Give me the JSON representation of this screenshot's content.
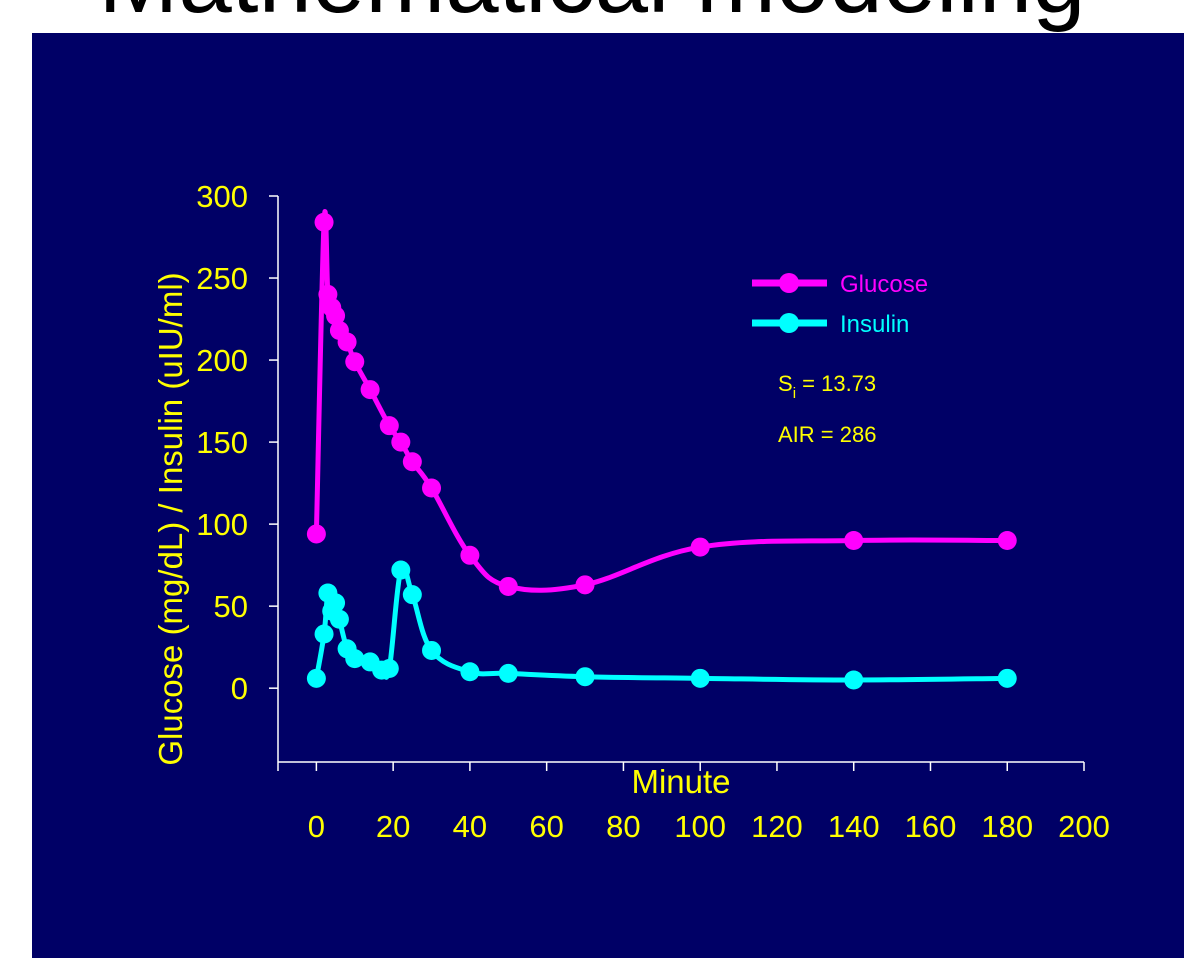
{
  "slide": {
    "title": "Mathematical modeling",
    "background_color": "#ffffff",
    "panel_color": "#000066"
  },
  "chart_data": {
    "type": "line",
    "title": "",
    "xlabel": "Minute",
    "ylabel": "Glucose (mg/dL) / Insulin (uIU/ml)",
    "xlim": [
      -10,
      200
    ],
    "ylim": [
      -45,
      300
    ],
    "xticks": [
      0,
      20,
      40,
      60,
      80,
      100,
      120,
      140,
      160,
      180,
      200
    ],
    "yticks": [
      0,
      50,
      100,
      150,
      200,
      250,
      300
    ],
    "grid": false,
    "legend_position": "top-right",
    "colors": {
      "axis": "#ffffff",
      "text": "#ffff00",
      "glucose": "#ff00ff",
      "insulin": "#00ffff"
    },
    "series": [
      {
        "name": "Glucose",
        "color": "#ff00ff",
        "x": [
          0,
          2,
          3,
          4,
          5,
          6,
          8,
          10,
          14,
          19,
          22,
          25,
          30,
          40,
          50,
          70,
          100,
          140,
          180
        ],
        "y": [
          94,
          284,
          240,
          232,
          227,
          218,
          211,
          199,
          182,
          160,
          150,
          138,
          122,
          81,
          62,
          63,
          86,
          90,
          90
        ]
      },
      {
        "name": "Insulin",
        "color": "#00ffff",
        "x": [
          0,
          2,
          3,
          4,
          5,
          6,
          8,
          10,
          14,
          17,
          19,
          22,
          25,
          30,
          40,
          50,
          70,
          100,
          140,
          180
        ],
        "y": [
          6,
          33,
          58,
          47,
          52,
          42,
          24,
          18,
          16,
          11,
          12,
          72,
          57,
          23,
          10,
          9,
          7,
          6,
          5,
          6
        ]
      }
    ],
    "annotations": [
      {
        "name": "si",
        "main": "S",
        "sub": "i",
        "rest": " = 13.73"
      },
      {
        "name": "air",
        "text": "AIR = 286"
      }
    ]
  }
}
